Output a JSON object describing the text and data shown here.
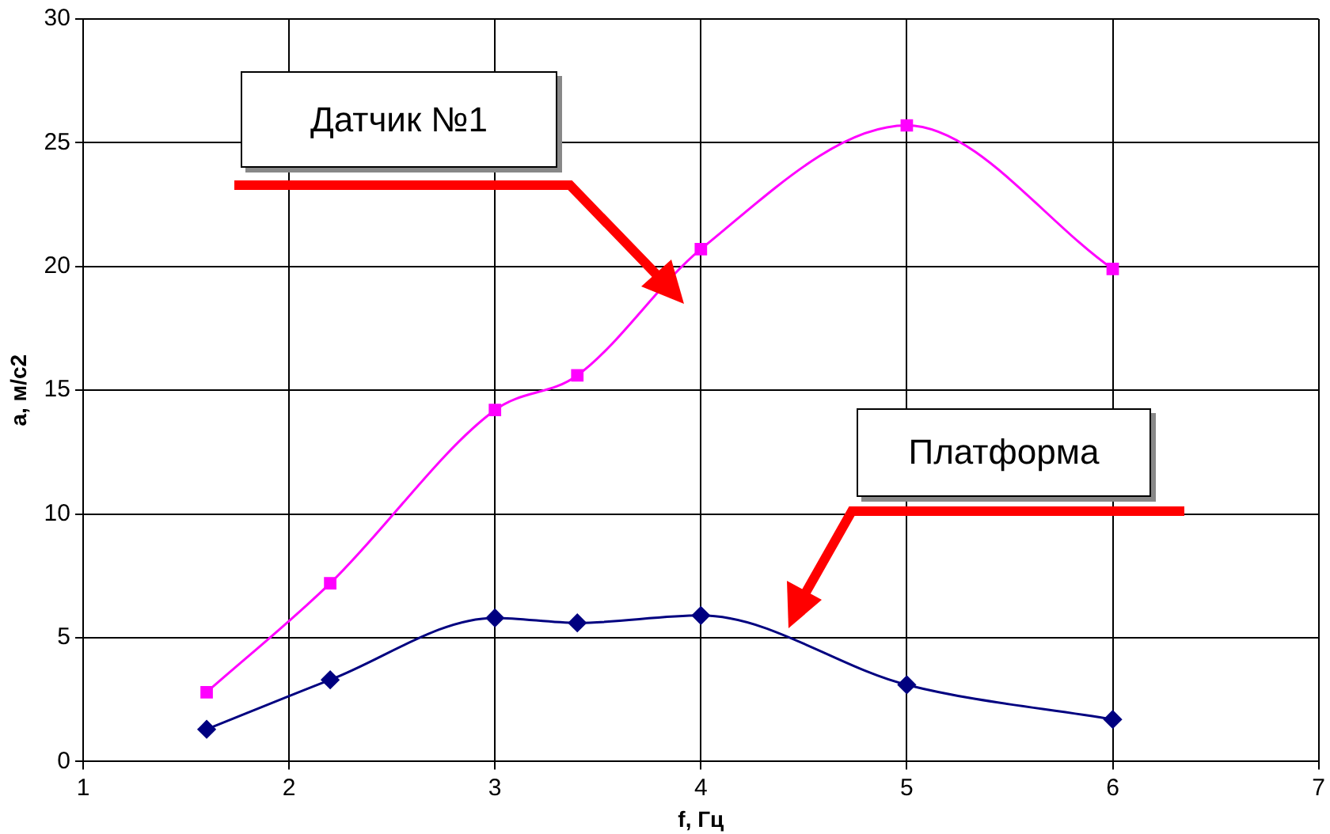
{
  "chart_data": {
    "type": "line",
    "xlabel": "f, Гц",
    "ylabel": "a, м/с2",
    "xlim": [
      1,
      7
    ],
    "xticks": [
      1,
      2,
      3,
      4,
      5,
      6,
      7
    ],
    "ylim": [
      0,
      30
    ],
    "yticks": [
      0,
      5,
      10,
      15,
      20,
      25,
      30
    ],
    "grid": true,
    "legend": false,
    "annotations": [
      "Датчик №1",
      "Платформа"
    ],
    "series": [
      {
        "color": "#ff00ff",
        "marker": "square",
        "x": [
          1.6,
          2.2,
          3,
          3.4,
          4,
          5,
          6
        ],
        "values": [
          2.8,
          7.2,
          14.2,
          15.6,
          20.7,
          25.7,
          19.9
        ]
      },
      {
        "color": "#000080",
        "marker": "diamond",
        "x": [
          1.6,
          2.2,
          3,
          3.4,
          4,
          5,
          6
        ],
        "values": [
          1.3,
          3.3,
          5.8,
          5.6,
          5.9,
          3.1,
          1.7
        ]
      }
    ]
  }
}
